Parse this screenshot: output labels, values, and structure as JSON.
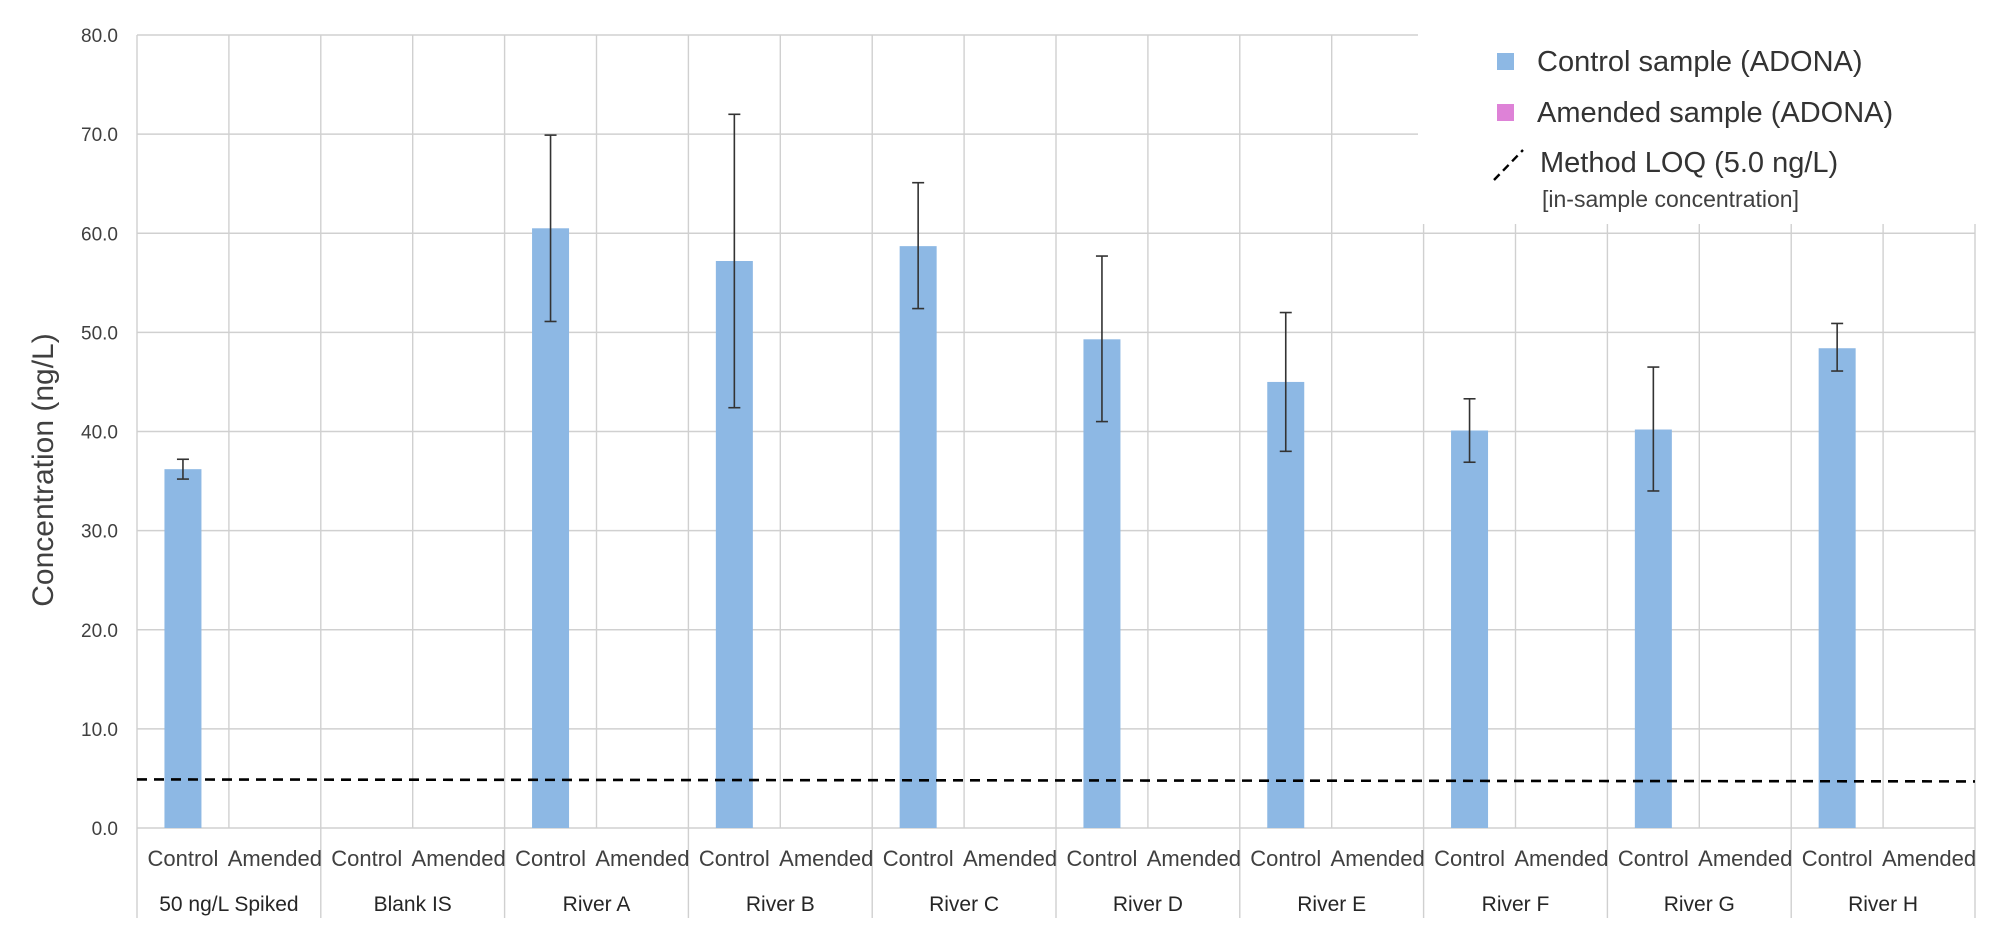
{
  "chart_data": {
    "type": "bar",
    "title": "",
    "xlabel": "",
    "ylabel": "Concentration (ng/L)",
    "ylim": [
      0,
      80
    ],
    "yticks": [
      "0.0",
      "10.0",
      "20.0",
      "30.0",
      "40.0",
      "50.0",
      "60.0",
      "70.0",
      "80.0"
    ],
    "grid": true,
    "legend_position": "top-right",
    "groups": [
      "50 ng/L Spiked",
      "Blank IS",
      "River A",
      "River B",
      "River C",
      "River D",
      "River E",
      "River F",
      "River G",
      "River H"
    ],
    "subcategories": [
      "Control",
      "Amended"
    ],
    "series": [
      {
        "name": "Control sample (ADONA)",
        "color": "#8db8e4",
        "values": [
          36.2,
          0,
          60.5,
          57.2,
          58.7,
          49.3,
          45.0,
          40.1,
          40.2,
          48.4
        ],
        "error_low": [
          35.2,
          null,
          51.1,
          42.4,
          52.4,
          41.0,
          38.0,
          36.9,
          34.0,
          46.1
        ],
        "error_high": [
          37.2,
          null,
          69.9,
          72.0,
          65.1,
          57.7,
          52.0,
          43.3,
          46.5,
          50.9
        ]
      },
      {
        "name": "Amended sample (ADONA)",
        "color": "#de82d7",
        "values": [
          0,
          0,
          0,
          0,
          0,
          0,
          0,
          0,
          0,
          0
        ]
      }
    ],
    "reference_line": {
      "name": "Method LOQ (5.0 ng/L)",
      "note": "[in-sample concentration]",
      "y_start": 4.9,
      "y_end": 4.7,
      "style": "dashed",
      "color": "#000000"
    }
  }
}
